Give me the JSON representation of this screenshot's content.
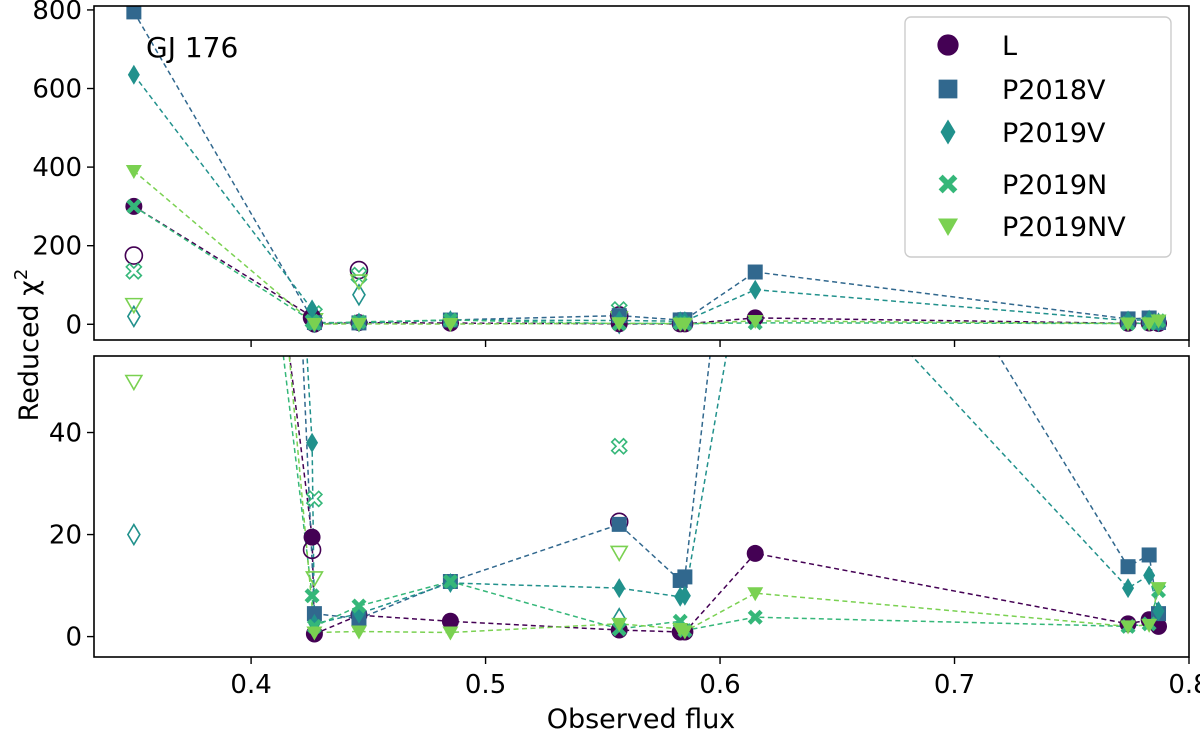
{
  "chart_data": {
    "type": "scatter",
    "title": "",
    "xlabel": "Observed flux",
    "ylabel": "Reduced χ²",
    "ylabel_base": "Reduced χ",
    "ylabel_sup": "2",
    "annotation": "GJ 176",
    "legend_position": "top-right",
    "xlim": [
      0.333,
      0.8
    ],
    "xticks": [
      {
        "v": 0.4,
        "label": "0.4"
      },
      {
        "v": 0.5,
        "label": "0.5"
      },
      {
        "v": 0.6,
        "label": "0.6"
      },
      {
        "v": 0.7,
        "label": "0.7"
      },
      {
        "v": 0.8,
        "label": "0.8"
      }
    ],
    "panels": [
      {
        "name": "top",
        "ylim": [
          -40,
          810
        ],
        "yticks": [
          {
            "v": 0,
            "label": "0"
          },
          {
            "v": 200,
            "label": "200"
          },
          {
            "v": 400,
            "label": "400"
          },
          {
            "v": 600,
            "label": "600"
          },
          {
            "v": 800,
            "label": "800"
          }
        ]
      },
      {
        "name": "bottom",
        "ylim": [
          -4,
          55
        ],
        "yticks": [
          {
            "v": 0,
            "label": "0"
          },
          {
            "v": 20,
            "label": "20"
          },
          {
            "v": 40,
            "label": "40"
          }
        ]
      }
    ],
    "series": [
      {
        "name": "L",
        "color": "#440154",
        "marker": "circle",
        "x": [
          0.35,
          0.426,
          0.427,
          0.446,
          0.485,
          0.557,
          0.583,
          0.585,
          0.615,
          0.774,
          0.783,
          0.787
        ],
        "y": [
          300,
          19.5,
          0.5,
          4.2,
          3.0,
          1.3,
          0.9,
          0.9,
          16.3,
          2.5,
          3.3,
          2.0
        ],
        "open_x": [
          0.35,
          0.426,
          0.446,
          0.557
        ],
        "open_y": [
          175,
          17,
          138,
          22.5
        ]
      },
      {
        "name": "P2018V",
        "color": "#31688e",
        "marker": "square",
        "x": [
          0.35,
          0.427,
          0.446,
          0.485,
          0.557,
          0.583,
          0.585,
          0.615,
          0.774,
          0.783,
          0.787
        ],
        "y": [
          795,
          4.5,
          3.5,
          10.8,
          22.0,
          11.0,
          11.7,
          133,
          13.7,
          16.0,
          4.5
        ],
        "open_x": [],
        "open_y": []
      },
      {
        "name": "P2019V",
        "color": "#21918c",
        "marker": "diamond",
        "x": [
          0.35,
          0.426,
          0.427,
          0.446,
          0.485,
          0.557,
          0.583,
          0.585,
          0.615,
          0.774,
          0.783,
          0.787
        ],
        "y": [
          635,
          38,
          2.5,
          4.5,
          10.5,
          9.5,
          7.8,
          8.0,
          88,
          9.5,
          12.0,
          5.0
        ],
        "open_x": [
          0.35,
          0.446,
          0.557
        ],
        "open_y": [
          20,
          75,
          3.5
        ]
      },
      {
        "name": "P2019N",
        "color": "#35b779",
        "marker": "x",
        "x": [
          0.35,
          0.426,
          0.427,
          0.446,
          0.485,
          0.557,
          0.583,
          0.585,
          0.615,
          0.774,
          0.783,
          0.787
        ],
        "y": [
          300,
          8.0,
          2.0,
          6.0,
          10.8,
          1.5,
          3.0,
          1.2,
          3.8,
          2.0,
          2.5,
          9.0
        ],
        "open_x": [
          0.35,
          0.427,
          0.446,
          0.557
        ],
        "open_y": [
          135,
          27,
          125,
          37.3
        ]
      },
      {
        "name": "P2019NV",
        "color": "#7ad151",
        "marker": "triangle_down",
        "x": [
          0.35,
          0.427,
          0.446,
          0.485,
          0.557,
          0.583,
          0.585,
          0.615,
          0.774,
          0.783,
          0.787
        ],
        "y": [
          390,
          0.8,
          1.0,
          0.8,
          2.5,
          1.5,
          1.0,
          8.5,
          2.0,
          2.3,
          9.5
        ],
        "open_x": [
          0.35,
          0.427,
          0.446,
          0.557
        ],
        "open_y": [
          50,
          11.5,
          110,
          16.5
        ]
      }
    ]
  }
}
